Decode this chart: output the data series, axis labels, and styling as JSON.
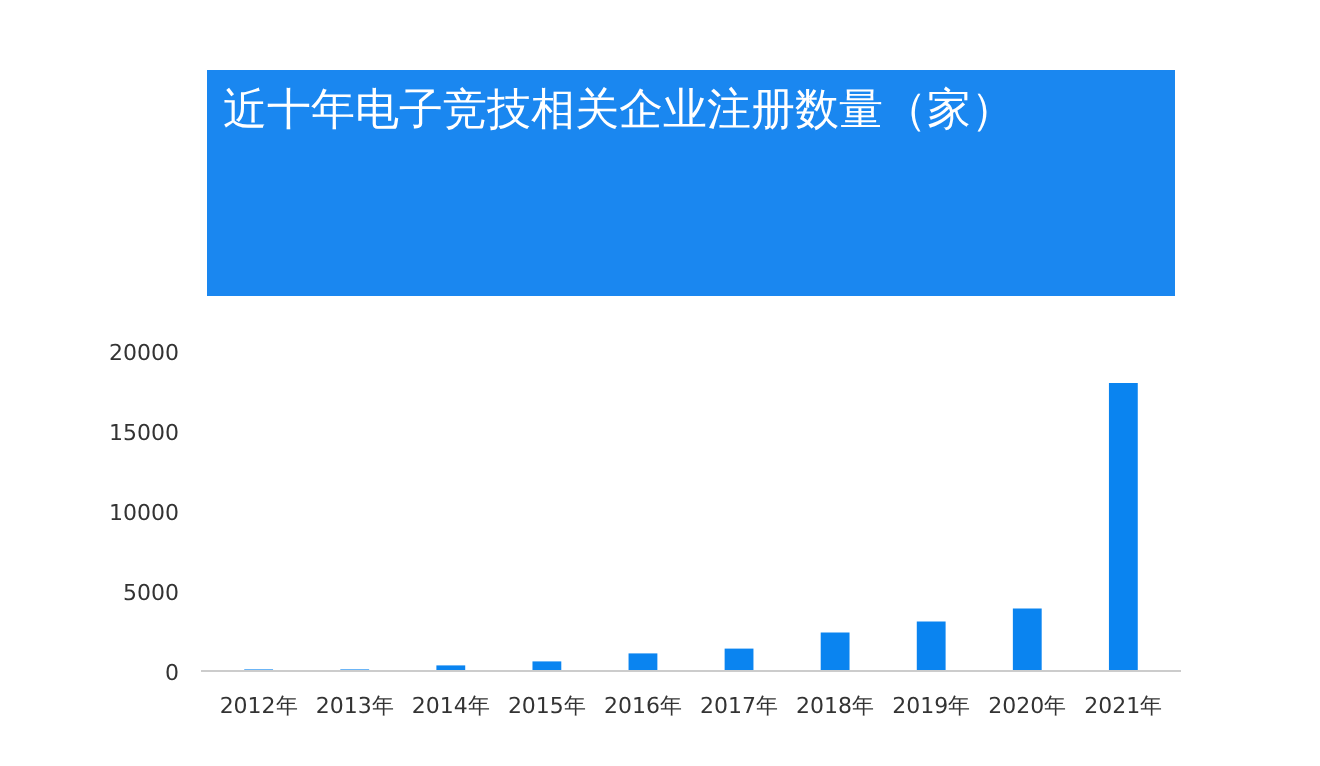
{
  "chart_data": {
    "type": "bar",
    "title": "近十年电子竞技相关企业注册数量（家）",
    "categories": [
      "2012年",
      "2013年",
      "2014年",
      "2015年",
      "2016年",
      "2017年",
      "2018年",
      "2019年",
      "2020年",
      "2021年"
    ],
    "values": [
      100,
      100,
      350,
      600,
      1100,
      1400,
      2400,
      3100,
      3900,
      18000
    ],
    "color": "#0a84f0",
    "ylim": [
      0,
      20000
    ],
    "yticks": [
      0,
      5000,
      10000,
      15000,
      20000
    ],
    "grid": false
  }
}
